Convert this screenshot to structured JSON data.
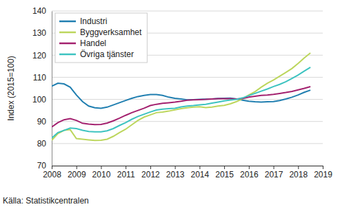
{
  "chart_data": {
    "type": "line",
    "y_label": "Index (2015=100)",
    "source": "Källa: Statistikcentralen",
    "x": [
      2008,
      2008.25,
      2008.5,
      2008.75,
      2009,
      2009.25,
      2009.5,
      2009.75,
      2010,
      2010.25,
      2010.5,
      2010.75,
      2011,
      2011.25,
      2011.5,
      2011.75,
      2012,
      2012.25,
      2012.5,
      2012.75,
      2013,
      2013.25,
      2013.5,
      2013.75,
      2014,
      2014.25,
      2014.5,
      2014.75,
      2015,
      2015.25,
      2015.5,
      2015.75,
      2016,
      2016.25,
      2016.5,
      2016.75,
      2017,
      2017.25,
      2017.5,
      2017.75,
      2018,
      2018.25,
      2018.5
    ],
    "series": [
      {
        "name": "Industri",
        "color": "#1f7eb0",
        "values": [
          106,
          107.3,
          107,
          105.5,
          102,
          99,
          97,
          96.2,
          96,
          96.5,
          97.5,
          98.5,
          99.5,
          100.5,
          101.3,
          101.8,
          102.2,
          102.2,
          101.8,
          101,
          100.5,
          100.2,
          99.8,
          99.9,
          100,
          100.1,
          100.2,
          100.4,
          100.5,
          100.6,
          100.2,
          99.6,
          99.2,
          98.9,
          98.8,
          98.9,
          99,
          99.5,
          100.2,
          101,
          102,
          103.2,
          104.2
        ]
      },
      {
        "name": "Byggverksamhet",
        "color": "#bcd65c",
        "values": [
          81.5,
          84.5,
          86,
          86.3,
          82.3,
          82,
          81.7,
          81.4,
          81.5,
          82,
          83.3,
          85,
          86.5,
          88.5,
          90.5,
          92,
          93,
          94,
          94.3,
          94.7,
          95.3,
          95.8,
          96.2,
          96.5,
          96.7,
          96.3,
          96.5,
          97,
          97.3,
          98,
          99,
          100.3,
          102,
          103.5,
          105.5,
          107.3,
          108.8,
          110.5,
          112.2,
          114,
          116.3,
          118.8,
          121
        ]
      },
      {
        "name": "Handel",
        "color": "#a3206e",
        "values": [
          87.5,
          89.5,
          90.8,
          91.3,
          90.5,
          89.2,
          88.8,
          88.6,
          88.7,
          89.3,
          90.3,
          91.5,
          92.8,
          94,
          95,
          96,
          97.2,
          97.8,
          98.2,
          98.5,
          98.8,
          99.2,
          99.6,
          99.8,
          99.9,
          100,
          100.2,
          100.3,
          100.3,
          100.3,
          100.2,
          100.4,
          101,
          101.4,
          101.8,
          102,
          102.3,
          102.7,
          103.1,
          103.6,
          104.3,
          105,
          105.8
        ]
      },
      {
        "name": "Övriga tjänster",
        "color": "#3cc3c0",
        "values": [
          82.5,
          85,
          86,
          87,
          86.8,
          86,
          85.5,
          85.3,
          85.3,
          85.8,
          86.8,
          88.2,
          89.5,
          91,
          92.3,
          93.3,
          94.3,
          95.2,
          95.6,
          95.8,
          96,
          96.6,
          97,
          97.2,
          97.5,
          97.8,
          98.3,
          98.8,
          99.3,
          99.7,
          100,
          100.7,
          101.7,
          102.7,
          103.7,
          104.7,
          105.8,
          106.8,
          108,
          109.5,
          111,
          112.8,
          114.5
        ]
      }
    ],
    "xlim": [
      2008,
      2019
    ],
    "xticks": [
      2008,
      2009,
      2010,
      2011,
      2012,
      2013,
      2014,
      2015,
      2016,
      2017,
      2018,
      2019
    ],
    "ylim": [
      70,
      140
    ],
    "yticks": [
      70,
      80,
      90,
      100,
      110,
      120,
      130,
      140
    ],
    "grid": true,
    "legend": "top-left"
  }
}
